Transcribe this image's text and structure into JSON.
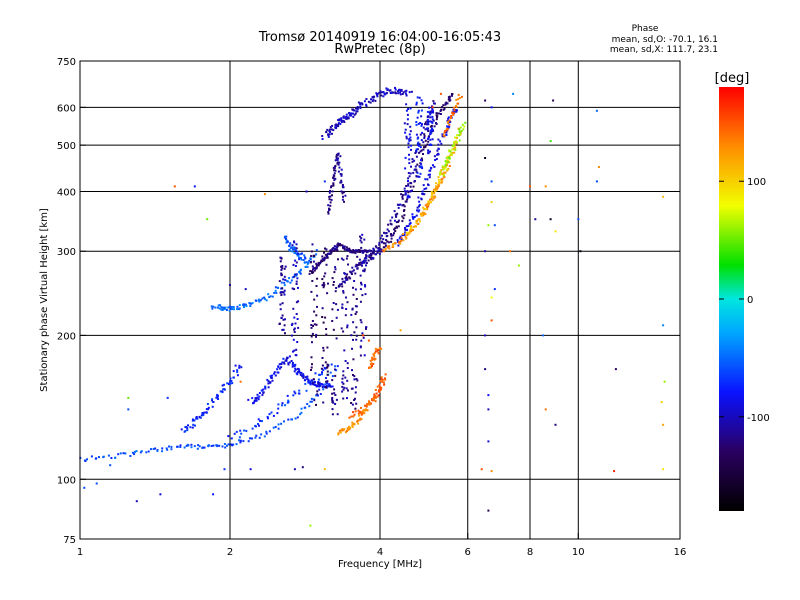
{
  "chart_data": {
    "type": "scatter",
    "title": "Tromsø 20140919 16:04:00-16:05:43",
    "subtitle": "RwPretec (8p)",
    "xlabel": "Frequency [MHz]",
    "ylabel": "Stationary phase Virtual Height [km]",
    "x_scale": "log",
    "y_scale": "log",
    "xlim": [
      1,
      16
    ],
    "ylim": [
      75,
      750
    ],
    "x_ticks": [
      1,
      2,
      4,
      6,
      8,
      10,
      16
    ],
    "y_ticks": [
      75,
      100,
      200,
      300,
      400,
      500,
      600,
      750
    ],
    "x_grid": [
      2,
      4,
      6,
      8,
      10
    ],
    "y_grid": [
      100,
      200,
      300,
      400,
      500,
      600
    ],
    "grid": true,
    "stats": {
      "heading": "Phase",
      "line_o": "mean, sd,O: -70.1, 16.1",
      "line_x": "mean, sd,X: 111.7, 23.1"
    },
    "colorbar": {
      "label": "[deg]",
      "range": [
        -180,
        180
      ],
      "ticks": [
        100,
        0,
        -100
      ],
      "placement": "right"
    },
    "traces": [
      {
        "phase": -125,
        "scatter": 0.01,
        "x": [
          4.0,
          4.2,
          4.4,
          4.6,
          4.8,
          5.0,
          5.2,
          5.4,
          5.6
        ],
        "y": [
          300,
          320,
          350,
          400,
          460,
          520,
          570,
          610,
          640
        ]
      },
      {
        "phase": -110,
        "scatter": 0.012,
        "x": [
          3.8,
          4.0,
          4.2,
          4.4,
          4.6,
          4.8,
          5.0,
          5.2
        ],
        "y": [
          295,
          310,
          340,
          380,
          430,
          500,
          560,
          620
        ]
      },
      {
        "phase": -90,
        "scatter": 0.012,
        "x": [
          4.3,
          4.5,
          4.7,
          4.9,
          5.1,
          5.3,
          5.5,
          5.7
        ],
        "y": [
          310,
          330,
          360,
          400,
          450,
          510,
          560,
          600
        ]
      },
      {
        "phase": 130,
        "scatter": 0.01,
        "x": [
          4.0,
          4.3,
          4.6,
          4.9,
          5.1,
          5.3,
          5.5
        ],
        "y": [
          300,
          310,
          330,
          360,
          390,
          420,
          450
        ]
      },
      {
        "phase": 110,
        "scatter": 0.012,
        "x": [
          4.5,
          4.8,
          5.0,
          5.2,
          5.4,
          5.6,
          5.8
        ],
        "y": [
          320,
          350,
          380,
          410,
          450,
          490,
          540
        ]
      },
      {
        "phase": 60,
        "scatter": 0.012,
        "x": [
          5.3,
          5.5,
          5.7,
          5.9
        ],
        "y": [
          430,
          470,
          510,
          560
        ]
      },
      {
        "phase": 140,
        "scatter": 0.01,
        "x": [
          5.4,
          5.6,
          5.8
        ],
        "y": [
          520,
          580,
          640
        ]
      },
      {
        "phase": -60,
        "scatter": 0.01,
        "x": [
          1.0,
          1.2,
          1.4,
          1.6,
          1.8,
          2.0,
          2.3,
          2.7,
          3.0,
          3.3
        ],
        "y": [
          110,
          112,
          115,
          117,
          117,
          118,
          123,
          135,
          150,
          175
        ]
      },
      {
        "phase": -70,
        "scatter": 0.02,
        "x": [
          2.0,
          2.3,
          2.6,
          2.9,
          3.2
        ],
        "y": [
          123,
          132,
          145,
          160,
          175
        ]
      },
      {
        "phase": -50,
        "scatter": 0.012,
        "x": [
          1.85,
          1.95,
          2.05,
          2.2,
          2.4,
          2.6,
          2.8,
          3.0
        ],
        "y": [
          230,
          228,
          228,
          232,
          242,
          258,
          275,
          300
        ]
      },
      {
        "phase": -55,
        "scatter": 0.012,
        "x": [
          2.6,
          2.65,
          2.75,
          2.85
        ],
        "y": [
          320,
          305,
          295,
          285
        ]
      },
      {
        "phase": -120,
        "scatter": 0.006,
        "x": [
          2.9,
          3.0,
          3.1,
          3.2,
          3.3,
          3.4,
          3.5,
          3.6,
          3.7,
          3.8
        ],
        "y": [
          270,
          280,
          290,
          300,
          310,
          305,
          300,
          300,
          300,
          300
        ]
      },
      {
        "phase": -115,
        "scatter": 0.012,
        "x": [
          3.3,
          3.45,
          3.6,
          3.75,
          3.9,
          4.0
        ],
        "y": [
          250,
          265,
          278,
          288,
          295,
          300
        ]
      },
      {
        "phase": -100,
        "scatter": 0.015,
        "x": [
          3.1,
          3.2,
          3.3,
          3.4,
          3.5,
          3.6
        ],
        "y": [
          520,
          540,
          560,
          570,
          580,
          590
        ]
      },
      {
        "phase": -100,
        "scatter": 0.015,
        "x": [
          3.6,
          3.8,
          4.0,
          4.2,
          4.4,
          4.6
        ],
        "y": [
          600,
          620,
          640,
          650,
          650,
          640
        ]
      },
      {
        "phase": -115,
        "scatter": 0.008,
        "x": [
          3.15,
          3.2,
          3.25,
          3.3,
          3.35,
          3.4
        ],
        "y": [
          360,
          400,
          440,
          480,
          420,
          380
        ]
      },
      {
        "phase": 150,
        "scatter": 0.012,
        "x": [
          3.5,
          3.7,
          3.9,
          4.0,
          4.1
        ],
        "y": [
          135,
          140,
          148,
          155,
          165
        ]
      },
      {
        "phase": 130,
        "scatter": 0.01,
        "x": [
          3.3,
          3.45,
          3.6,
          3.75,
          3.9
        ],
        "y": [
          125,
          127,
          132,
          140,
          150
        ]
      },
      {
        "phase": 145,
        "scatter": 0.01,
        "x": [
          3.8,
          3.9,
          4.0
        ],
        "y": [
          170,
          180,
          190
        ]
      },
      {
        "phase": -75,
        "scatter": 0.015,
        "x": [
          1.6,
          1.7,
          1.8,
          1.9,
          2.0,
          2.1
        ],
        "y": [
          125,
          132,
          140,
          150,
          160,
          175
        ]
      },
      {
        "phase": -85,
        "scatter": 0.012,
        "x": [
          2.6,
          2.7,
          2.8,
          2.9,
          3.0,
          3.1,
          3.2
        ],
        "y": [
          180,
          170,
          165,
          160,
          158,
          157,
          156
        ]
      },
      {
        "phase": -85,
        "scatter": 0.012,
        "x": [
          2.2,
          2.3,
          2.4,
          2.5,
          2.6
        ],
        "y": [
          145,
          150,
          160,
          170,
          180
        ]
      }
    ],
    "columns": [
      {
        "x": 2.55,
        "y0": 200,
        "y1": 300,
        "phase": -110
      },
      {
        "x": 2.7,
        "y0": 180,
        "y1": 320,
        "phase": -100
      },
      {
        "x": 2.95,
        "y0": 140,
        "y1": 310,
        "phase": -125
      },
      {
        "x": 3.1,
        "y0": 140,
        "y1": 320,
        "phase": -130
      },
      {
        "x": 3.25,
        "y0": 135,
        "y1": 310,
        "phase": -120
      },
      {
        "x": 3.4,
        "y0": 140,
        "y1": 300,
        "phase": -110
      },
      {
        "x": 3.55,
        "y0": 140,
        "y1": 300,
        "phase": -115
      },
      {
        "x": 3.7,
        "y0": 180,
        "y1": 330,
        "phase": -105
      },
      {
        "x": 4.55,
        "y0": 380,
        "y1": 620,
        "phase": -90
      },
      {
        "x": 4.8,
        "y0": 420,
        "y1": 630,
        "phase": -80
      },
      {
        "x": 5.05,
        "y0": 480,
        "y1": 600,
        "phase": -85
      }
    ],
    "sparse_points": [
      {
        "x": 6.5,
        "y": 300,
        "phase": -110
      },
      {
        "x": 6.5,
        "y": 200,
        "phase": -100
      },
      {
        "x": 6.5,
        "y": 170,
        "phase": -120
      },
      {
        "x": 6.6,
        "y": 150,
        "phase": -80
      },
      {
        "x": 6.6,
        "y": 140,
        "phase": -100
      },
      {
        "x": 6.6,
        "y": 120,
        "phase": -90
      },
      {
        "x": 6.4,
        "y": 105,
        "phase": 150
      },
      {
        "x": 6.7,
        "y": 104,
        "phase": 130
      },
      {
        "x": 6.6,
        "y": 86,
        "phase": -140
      },
      {
        "x": 6.7,
        "y": 240,
        "phase": 80
      },
      {
        "x": 6.7,
        "y": 215,
        "phase": 150
      },
      {
        "x": 6.8,
        "y": 250,
        "phase": -70
      },
      {
        "x": 6.5,
        "y": 620,
        "phase": -130
      },
      {
        "x": 6.7,
        "y": 600,
        "phase": -80
      },
      {
        "x": 6.7,
        "y": 380,
        "phase": 100
      },
      {
        "x": 6.6,
        "y": 340,
        "phase": 60
      },
      {
        "x": 6.8,
        "y": 340,
        "phase": -60
      },
      {
        "x": 6.7,
        "y": 420,
        "phase": -60
      },
      {
        "x": 6.5,
        "y": 470,
        "phase": -160
      },
      {
        "x": 7.4,
        "y": 640,
        "phase": -40
      },
      {
        "x": 7.3,
        "y": 300,
        "phase": 140
      },
      {
        "x": 7.6,
        "y": 280,
        "phase": 60
      },
      {
        "x": 8.0,
        "y": 410,
        "phase": 150
      },
      {
        "x": 8.2,
        "y": 350,
        "phase": -110
      },
      {
        "x": 8.5,
        "y": 200,
        "phase": -50
      },
      {
        "x": 8.6,
        "y": 140,
        "phase": 140
      },
      {
        "x": 8.9,
        "y": 620,
        "phase": -140
      },
      {
        "x": 8.8,
        "y": 510,
        "phase": 40
      },
      {
        "x": 9.0,
        "y": 330,
        "phase": 90
      },
      {
        "x": 9.0,
        "y": 130,
        "phase": -120
      },
      {
        "x": 8.8,
        "y": 350,
        "phase": -160
      },
      {
        "x": 8.6,
        "y": 410,
        "phase": 130
      },
      {
        "x": 10.1,
        "y": 300,
        "phase": -170
      },
      {
        "x": 10.0,
        "y": 350,
        "phase": -60
      },
      {
        "x": 10.9,
        "y": 590,
        "phase": -50
      },
      {
        "x": 11.0,
        "y": 450,
        "phase": 130
      },
      {
        "x": 10.9,
        "y": 420,
        "phase": -60
      },
      {
        "x": 11.8,
        "y": 104,
        "phase": 170
      },
      {
        "x": 11.9,
        "y": 170,
        "phase": -130
      },
      {
        "x": 14.8,
        "y": 390,
        "phase": 110
      },
      {
        "x": 14.8,
        "y": 210,
        "phase": -40
      },
      {
        "x": 14.9,
        "y": 160,
        "phase": 60
      },
      {
        "x": 14.7,
        "y": 145,
        "phase": 100
      },
      {
        "x": 14.8,
        "y": 130,
        "phase": 120
      },
      {
        "x": 14.8,
        "y": 105,
        "phase": 90
      },
      {
        "x": 5.3,
        "y": 640,
        "phase": 150
      },
      {
        "x": 5.1,
        "y": 600,
        "phase": 160
      },
      {
        "x": 3.7,
        "y": 200,
        "phase": 160
      },
      {
        "x": 3.8,
        "y": 195,
        "phase": 150
      },
      {
        "x": 4.4,
        "y": 205,
        "phase": 120
      },
      {
        "x": 1.55,
        "y": 410,
        "phase": 150
      },
      {
        "x": 1.7,
        "y": 410,
        "phase": -80
      },
      {
        "x": 1.8,
        "y": 350,
        "phase": 50
      },
      {
        "x": 2.35,
        "y": 395,
        "phase": 130
      },
      {
        "x": 2.85,
        "y": 400,
        "phase": -100
      },
      {
        "x": 3.1,
        "y": 420,
        "phase": -70
      },
      {
        "x": 2.0,
        "y": 255,
        "phase": -110
      },
      {
        "x": 2.15,
        "y": 250,
        "phase": -100
      },
      {
        "x": 1.95,
        "y": 105,
        "phase": -70
      },
      {
        "x": 1.85,
        "y": 93,
        "phase": -80
      },
      {
        "x": 1.45,
        "y": 93,
        "phase": -90
      },
      {
        "x": 1.3,
        "y": 90,
        "phase": -100
      },
      {
        "x": 1.15,
        "y": 107,
        "phase": -60
      },
      {
        "x": 1.08,
        "y": 98,
        "phase": -60
      },
      {
        "x": 1.02,
        "y": 96,
        "phase": -60
      },
      {
        "x": 2.7,
        "y": 105,
        "phase": -100
      },
      {
        "x": 2.8,
        "y": 106,
        "phase": -120
      },
      {
        "x": 2.9,
        "y": 80,
        "phase": 60
      },
      {
        "x": 3.1,
        "y": 105,
        "phase": 110
      },
      {
        "x": 1.25,
        "y": 148,
        "phase": 50
      },
      {
        "x": 1.25,
        "y": 140,
        "phase": -60
      },
      {
        "x": 1.5,
        "y": 148,
        "phase": -70
      },
      {
        "x": 2.1,
        "y": 160,
        "phase": 140
      },
      {
        "x": 2.2,
        "y": 105,
        "phase": -90
      }
    ]
  }
}
